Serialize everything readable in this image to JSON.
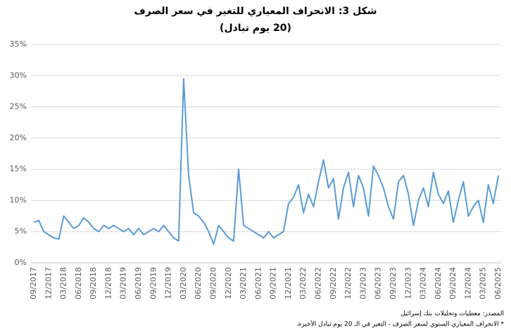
{
  "chart_data": {
    "type": "line",
    "title": "شكل 3: الانحراف المعياري للتغير في سعر الصرف",
    "subtitle": "(20 يوم تبادل)",
    "source": "المصدر: معطيات وتحليلات بنك إسرائيل",
    "note": "* الانحراف المعياري السنوي لسعر الصرف - التغير في الـ 20 يوم تبادل الأخيرة.",
    "categories": [
      "09/2017",
      null,
      null,
      "12/2017",
      null,
      null,
      "03/2018",
      null,
      null,
      "06/2018",
      null,
      null,
      "09/2018",
      null,
      null,
      "12/2018",
      null,
      null,
      "03/2019",
      null,
      null,
      "06/2019",
      null,
      null,
      "09/2019",
      null,
      null,
      "12/2019",
      null,
      null,
      "03/2020",
      null,
      null,
      "06/2020",
      null,
      null,
      "09/2020",
      null,
      null,
      "12/2020",
      null,
      null,
      "03/2021",
      null,
      null,
      "06/2021",
      null,
      null,
      "09/2021",
      null,
      null,
      "12/2021",
      null,
      null,
      "03/2022",
      null,
      null,
      "06/2022",
      null,
      null,
      "09/2022",
      null,
      null,
      "12/2022",
      null,
      null,
      "03/2023",
      null,
      null,
      "06/2023",
      null,
      null,
      "09/2023",
      null,
      null,
      "12/2023",
      null,
      null,
      "03/2024",
      null,
      null,
      "06/2024",
      null,
      null,
      "09/2024",
      null,
      null,
      "12/2024",
      null,
      null,
      "03/2025",
      null,
      null,
      "06/2025"
    ],
    "series": [
      {
        "name": "الانحراف المعياري",
        "color": "#5b9bd5",
        "values": [
          6.5,
          6.8,
          5.0,
          4.5,
          4.0,
          3.8,
          7.5,
          6.5,
          5.5,
          6.0,
          7.2,
          6.5,
          5.5,
          5.0,
          6.0,
          5.5,
          6.0,
          5.5,
          5.0,
          5.5,
          4.5,
          5.5,
          4.5,
          5.0,
          5.5,
          5.0,
          6.0,
          5.0,
          4.0,
          3.5,
          29.5,
          14.0,
          8.0,
          7.5,
          6.5,
          5.0,
          3.0,
          6.0,
          5.0,
          4.0,
          3.5,
          15.0,
          6.0,
          5.5,
          5.0,
          4.5,
          4.0,
          5.0,
          4.0,
          4.5,
          5.0,
          9.5,
          10.5,
          12.5,
          8.0,
          11.0,
          9.0,
          13.0,
          16.5,
          12.0,
          13.5,
          7.0,
          12.0,
          14.5,
          9.0,
          14.0,
          12.0,
          7.5,
          15.5,
          14.0,
          12.0,
          9.0,
          7.0,
          13.0,
          14.0,
          11.0,
          6.0,
          10.0,
          12.0,
          9.0,
          14.5,
          11.0,
          9.5,
          11.5,
          6.5,
          10.0,
          13.0,
          7.5,
          9.0,
          10.0,
          6.5,
          12.5,
          9.5,
          14.0
        ]
      }
    ],
    "ylim": [
      0,
      35
    ],
    "yticks": [
      {
        "value": 0,
        "label": "0%"
      },
      {
        "value": 5,
        "label": "5%"
      },
      {
        "value": 10,
        "label": "10%"
      },
      {
        "value": 15,
        "label": "15%"
      },
      {
        "value": 20,
        "label": "20%"
      },
      {
        "value": 25,
        "label": "25%"
      },
      {
        "value": 30,
        "label": "30%"
      },
      {
        "value": 35,
        "label": "35%"
      }
    ],
    "grid": true
  }
}
